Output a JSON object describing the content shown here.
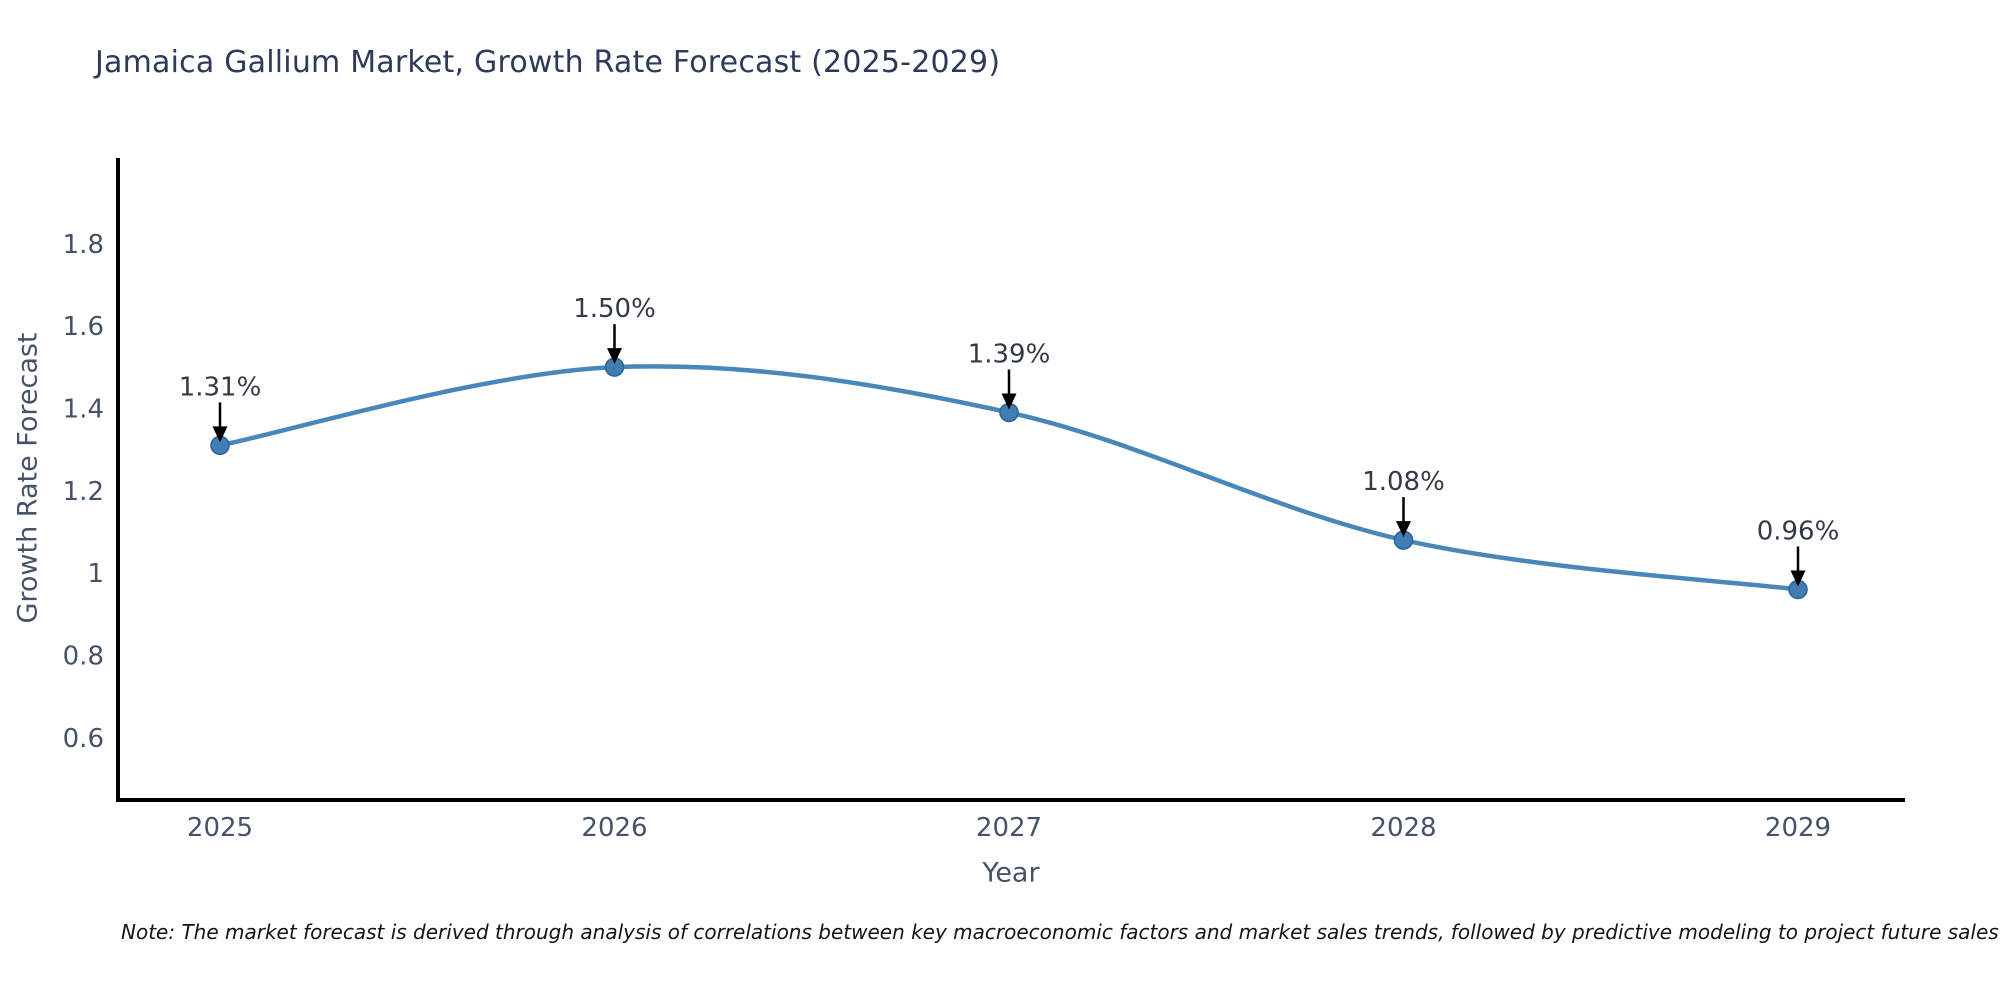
{
  "title": "Jamaica Gallium Market, Growth Rate Forecast (2025-2029)",
  "note": "Note: The market forecast is derived through analysis of correlations between key macroeconomic factors and market sales trends, followed by predictive modeling to project future sales",
  "chart_data": {
    "type": "line",
    "title": "Jamaica Gallium Market, Growth Rate Forecast (2025-2029)",
    "xlabel": "Year",
    "ylabel": "Growth Rate Forecast",
    "categories": [
      "2025",
      "2026",
      "2027",
      "2028",
      "2029"
    ],
    "x": [
      2025,
      2026,
      2027,
      2028,
      2029
    ],
    "values": [
      1.31,
      1.5,
      1.39,
      1.08,
      0.96
    ],
    "point_labels": [
      "1.31%",
      "1.50%",
      "1.39%",
      "1.08%",
      "0.96%"
    ],
    "yticks": [
      {
        "value": 0.6,
        "label": "0.6"
      },
      {
        "value": 0.8,
        "label": "0.8"
      },
      {
        "value": 1.0,
        "label": "1"
      },
      {
        "value": 1.2,
        "label": "1.2"
      },
      {
        "value": 1.4,
        "label": "1.4"
      },
      {
        "value": 1.6,
        "label": "1.6"
      },
      {
        "value": 1.8,
        "label": "1.8"
      }
    ],
    "ylim": [
      0.45,
      2.0
    ],
    "grid": false,
    "legend": "none",
    "line_style": "smooth-spline",
    "marker": "circle"
  },
  "colors": {
    "title_text": "#2e3a59",
    "axis_text": "#46516a",
    "tick_text": "#46516a",
    "annotation_text": "#333a47",
    "note_text": "#141414",
    "spine": "#000000",
    "line": "#4887bc",
    "marker_fill": "#3f7db3",
    "marker_edge": "#2d6294",
    "arrow": "#000000",
    "background": "#ffffff"
  }
}
